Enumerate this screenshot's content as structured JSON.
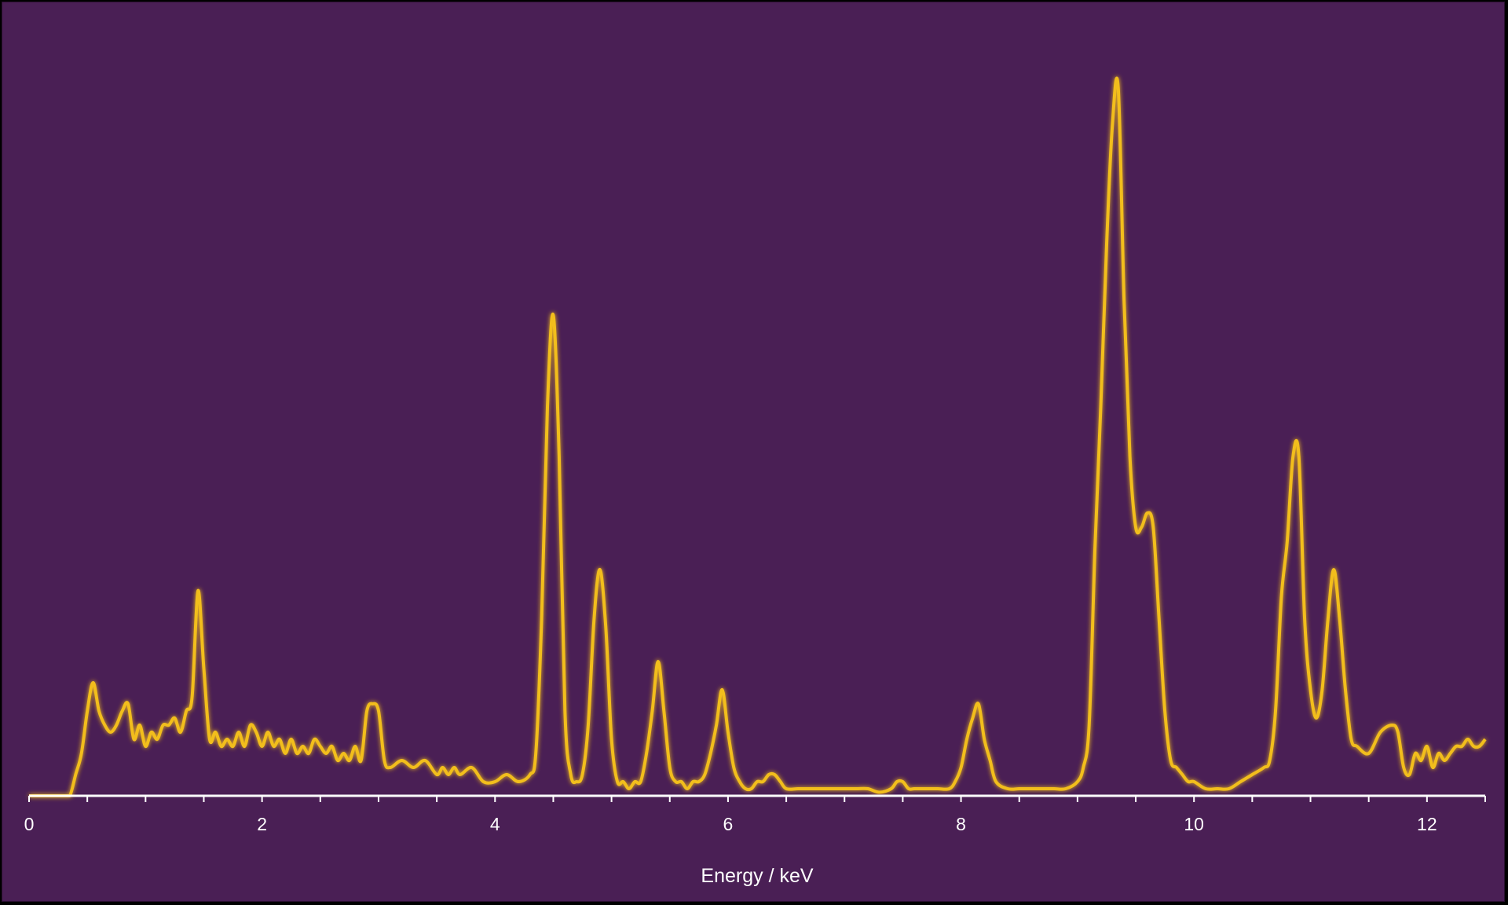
{
  "chart_data": {
    "type": "line",
    "title": "",
    "xlabel": "Energy / keV",
    "ylabel": "",
    "xlim": [
      0,
      12.5
    ],
    "ylim": [
      0,
      1
    ],
    "x_major_ticks": [
      0,
      2,
      4,
      6,
      8,
      10,
      12
    ],
    "x_minor_step": 0.5,
    "grid": false,
    "legend": "none",
    "colors": {
      "background": "#4a1f55",
      "line": "#f2be1c",
      "axis": "#ffffff",
      "text": "#ffffff"
    },
    "series": [
      {
        "points": [
          [
            0.0,
            0.0
          ],
          [
            0.1,
            0.0
          ],
          [
            0.2,
            0.0
          ],
          [
            0.3,
            0.0
          ],
          [
            0.35,
            0.0
          ],
          [
            0.4,
            0.03
          ],
          [
            0.45,
            0.06
          ],
          [
            0.5,
            0.12
          ],
          [
            0.55,
            0.16
          ],
          [
            0.6,
            0.12
          ],
          [
            0.65,
            0.1
          ],
          [
            0.7,
            0.09
          ],
          [
            0.75,
            0.1
          ],
          [
            0.8,
            0.12
          ],
          [
            0.85,
            0.13
          ],
          [
            0.9,
            0.08
          ],
          [
            0.95,
            0.1
          ],
          [
            1.0,
            0.07
          ],
          [
            1.05,
            0.09
          ],
          [
            1.1,
            0.08
          ],
          [
            1.15,
            0.1
          ],
          [
            1.2,
            0.1
          ],
          [
            1.25,
            0.11
          ],
          [
            1.3,
            0.09
          ],
          [
            1.35,
            0.12
          ],
          [
            1.4,
            0.14
          ],
          [
            1.45,
            0.29
          ],
          [
            1.5,
            0.18
          ],
          [
            1.55,
            0.08
          ],
          [
            1.6,
            0.09
          ],
          [
            1.65,
            0.07
          ],
          [
            1.7,
            0.08
          ],
          [
            1.75,
            0.07
          ],
          [
            1.8,
            0.09
          ],
          [
            1.85,
            0.07
          ],
          [
            1.9,
            0.1
          ],
          [
            1.95,
            0.09
          ],
          [
            2.0,
            0.07
          ],
          [
            2.05,
            0.09
          ],
          [
            2.1,
            0.07
          ],
          [
            2.15,
            0.08
          ],
          [
            2.2,
            0.06
          ],
          [
            2.25,
            0.08
          ],
          [
            2.3,
            0.06
          ],
          [
            2.35,
            0.07
          ],
          [
            2.4,
            0.06
          ],
          [
            2.45,
            0.08
          ],
          [
            2.5,
            0.07
          ],
          [
            2.55,
            0.06
          ],
          [
            2.6,
            0.07
          ],
          [
            2.65,
            0.05
          ],
          [
            2.7,
            0.06
          ],
          [
            2.75,
            0.05
          ],
          [
            2.8,
            0.07
          ],
          [
            2.85,
            0.05
          ],
          [
            2.9,
            0.12
          ],
          [
            2.95,
            0.13
          ],
          [
            3.0,
            0.12
          ],
          [
            3.05,
            0.05
          ],
          [
            3.1,
            0.04
          ],
          [
            3.2,
            0.05
          ],
          [
            3.3,
            0.04
          ],
          [
            3.4,
            0.05
          ],
          [
            3.5,
            0.03
          ],
          [
            3.55,
            0.04
          ],
          [
            3.6,
            0.03
          ],
          [
            3.65,
            0.04
          ],
          [
            3.7,
            0.03
          ],
          [
            3.8,
            0.04
          ],
          [
            3.9,
            0.02
          ],
          [
            4.0,
            0.02
          ],
          [
            4.1,
            0.03
          ],
          [
            4.2,
            0.02
          ],
          [
            4.3,
            0.03
          ],
          [
            4.35,
            0.06
          ],
          [
            4.4,
            0.25
          ],
          [
            4.45,
            0.55
          ],
          [
            4.5,
            0.68
          ],
          [
            4.55,
            0.48
          ],
          [
            4.6,
            0.12
          ],
          [
            4.65,
            0.03
          ],
          [
            4.7,
            0.02
          ],
          [
            4.75,
            0.03
          ],
          [
            4.8,
            0.1
          ],
          [
            4.85,
            0.25
          ],
          [
            4.9,
            0.32
          ],
          [
            4.95,
            0.24
          ],
          [
            5.0,
            0.08
          ],
          [
            5.05,
            0.02
          ],
          [
            5.1,
            0.02
          ],
          [
            5.15,
            0.01
          ],
          [
            5.2,
            0.02
          ],
          [
            5.25,
            0.02
          ],
          [
            5.3,
            0.06
          ],
          [
            5.35,
            0.12
          ],
          [
            5.4,
            0.19
          ],
          [
            5.45,
            0.12
          ],
          [
            5.5,
            0.04
          ],
          [
            5.55,
            0.02
          ],
          [
            5.6,
            0.02
          ],
          [
            5.65,
            0.01
          ],
          [
            5.7,
            0.02
          ],
          [
            5.75,
            0.02
          ],
          [
            5.8,
            0.03
          ],
          [
            5.85,
            0.06
          ],
          [
            5.9,
            0.1
          ],
          [
            5.95,
            0.15
          ],
          [
            6.0,
            0.09
          ],
          [
            6.05,
            0.04
          ],
          [
            6.1,
            0.02
          ],
          [
            6.15,
            0.01
          ],
          [
            6.2,
            0.01
          ],
          [
            6.25,
            0.02
          ],
          [
            6.3,
            0.02
          ],
          [
            6.35,
            0.03
          ],
          [
            6.4,
            0.03
          ],
          [
            6.45,
            0.02
          ],
          [
            6.5,
            0.01
          ],
          [
            6.6,
            0.01
          ],
          [
            6.7,
            0.01
          ],
          [
            6.8,
            0.01
          ],
          [
            6.9,
            0.01
          ],
          [
            7.0,
            0.01
          ],
          [
            7.1,
            0.01
          ],
          [
            7.2,
            0.01
          ],
          [
            7.3,
            0.005
          ],
          [
            7.4,
            0.01
          ],
          [
            7.45,
            0.02
          ],
          [
            7.5,
            0.02
          ],
          [
            7.55,
            0.01
          ],
          [
            7.6,
            0.01
          ],
          [
            7.7,
            0.01
          ],
          [
            7.8,
            0.01
          ],
          [
            7.9,
            0.01
          ],
          [
            7.95,
            0.02
          ],
          [
            8.0,
            0.04
          ],
          [
            8.05,
            0.08
          ],
          [
            8.1,
            0.11
          ],
          [
            8.15,
            0.13
          ],
          [
            8.2,
            0.08
          ],
          [
            8.25,
            0.05
          ],
          [
            8.3,
            0.02
          ],
          [
            8.4,
            0.01
          ],
          [
            8.5,
            0.01
          ],
          [
            8.6,
            0.01
          ],
          [
            8.7,
            0.01
          ],
          [
            8.8,
            0.01
          ],
          [
            8.9,
            0.01
          ],
          [
            9.0,
            0.02
          ],
          [
            9.05,
            0.04
          ],
          [
            9.1,
            0.1
          ],
          [
            9.15,
            0.35
          ],
          [
            9.2,
            0.55
          ],
          [
            9.25,
            0.78
          ],
          [
            9.3,
            0.95
          ],
          [
            9.35,
            1.0
          ],
          [
            9.4,
            0.7
          ],
          [
            9.45,
            0.48
          ],
          [
            9.5,
            0.38
          ],
          [
            9.55,
            0.38
          ],
          [
            9.6,
            0.4
          ],
          [
            9.65,
            0.38
          ],
          [
            9.7,
            0.25
          ],
          [
            9.75,
            0.12
          ],
          [
            9.8,
            0.05
          ],
          [
            9.85,
            0.04
          ],
          [
            9.9,
            0.03
          ],
          [
            9.95,
            0.02
          ],
          [
            10.0,
            0.02
          ],
          [
            10.1,
            0.01
          ],
          [
            10.2,
            0.01
          ],
          [
            10.3,
            0.01
          ],
          [
            10.4,
            0.02
          ],
          [
            10.5,
            0.03
          ],
          [
            10.6,
            0.04
          ],
          [
            10.65,
            0.05
          ],
          [
            10.7,
            0.12
          ],
          [
            10.75,
            0.28
          ],
          [
            10.8,
            0.36
          ],
          [
            10.85,
            0.48
          ],
          [
            10.9,
            0.48
          ],
          [
            10.95,
            0.25
          ],
          [
            11.0,
            0.15
          ],
          [
            11.05,
            0.11
          ],
          [
            11.1,
            0.15
          ],
          [
            11.15,
            0.25
          ],
          [
            11.2,
            0.32
          ],
          [
            11.25,
            0.25
          ],
          [
            11.3,
            0.15
          ],
          [
            11.35,
            0.08
          ],
          [
            11.4,
            0.07
          ],
          [
            11.5,
            0.06
          ],
          [
            11.6,
            0.09
          ],
          [
            11.7,
            0.1
          ],
          [
            11.75,
            0.09
          ],
          [
            11.8,
            0.04
          ],
          [
            11.85,
            0.03
          ],
          [
            11.9,
            0.06
          ],
          [
            11.95,
            0.05
          ],
          [
            12.0,
            0.07
          ],
          [
            12.05,
            0.04
          ],
          [
            12.1,
            0.06
          ],
          [
            12.15,
            0.05
          ],
          [
            12.2,
            0.06
          ],
          [
            12.25,
            0.07
          ],
          [
            12.3,
            0.07
          ],
          [
            12.35,
            0.08
          ],
          [
            12.4,
            0.07
          ],
          [
            12.45,
            0.07
          ],
          [
            12.5,
            0.08
          ]
        ]
      }
    ]
  }
}
